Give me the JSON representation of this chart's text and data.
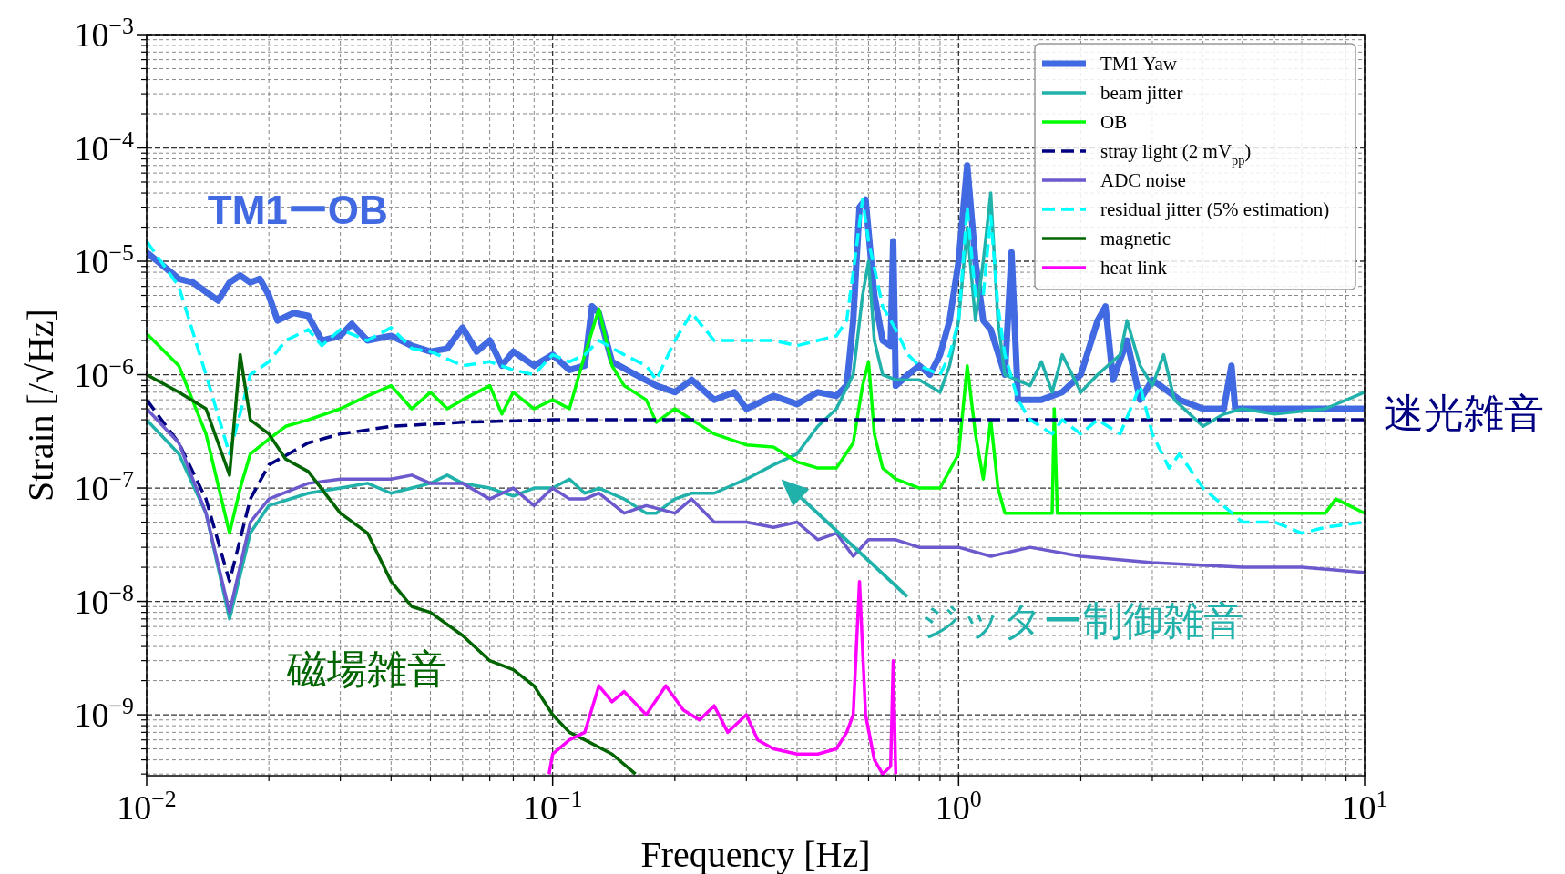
{
  "chart_data": {
    "type": "line",
    "xlabel": "Frequency [Hz]",
    "ylabel": "Strain [/√Hz]",
    "log": "xy",
    "grid": true,
    "legend": "top right",
    "xlim": [
      0.01,
      10
    ],
    "ylim": [
      2.9e-10,
      0.001
    ],
    "xticks": [
      {
        "value": 0.01,
        "label": "10$^{−2}$"
      },
      {
        "value": 0.1,
        "label": "10$^{−1}$"
      },
      {
        "value": 1,
        "label": "10$^{0}$"
      },
      {
        "value": 10,
        "label": "10$^{1}$"
      }
    ],
    "yticks": [
      {
        "value": 1e-09,
        "label": "10$^{−9}$"
      },
      {
        "value": 1e-08,
        "label": "10$^{−8}$"
      },
      {
        "value": 1e-07,
        "label": "10$^{−7}$"
      },
      {
        "value": 1e-06,
        "label": "10$^{−6}$"
      },
      {
        "value": 1e-05,
        "label": "10$^{−5}$"
      },
      {
        "value": 0.0001,
        "label": "10$^{−4}$"
      },
      {
        "value": 0.001,
        "label": "10$^{−3}$"
      }
    ],
    "annotations": [
      "TM1ーOB",
      "迷光雑音",
      "ジッター制御雑音",
      "磁場雑音"
    ],
    "series": [
      {
        "name": "TM1 Yaw",
        "color": "#4169e1",
        "x": [
          0.01,
          0.012,
          0.013,
          0.015,
          0.016,
          0.017,
          0.018,
          0.019,
          0.02,
          0.021,
          0.023,
          0.025,
          0.027,
          0.03,
          0.032,
          0.035,
          0.04,
          0.045,
          0.05,
          0.055,
          0.06,
          0.065,
          0.07,
          0.075,
          0.08,
          0.09,
          0.1,
          0.11,
          0.12,
          0.125,
          0.13,
          0.14,
          0.16,
          0.18,
          0.2,
          0.22,
          0.25,
          0.28,
          0.3,
          0.35,
          0.4,
          0.45,
          0.5,
          0.53,
          0.55,
          0.57,
          0.59,
          0.62,
          0.65,
          0.68,
          0.69,
          0.7,
          0.75,
          0.8,
          0.85,
          0.9,
          0.95,
          1.0,
          1.05,
          1.1,
          1.15,
          1.2,
          1.3,
          1.35,
          1.4,
          1.6,
          1.8,
          2.0,
          2.2,
          2.3,
          2.4,
          2.6,
          2.8,
          3.0,
          3.5,
          4,
          4.5,
          4.7,
          4.8,
          6,
          8,
          10
        ],
        "values": [
          1.2e-05,
          7e-06,
          6.5e-06,
          4.5e-06,
          6.5e-06,
          7.5e-06,
          6.5e-06,
          7e-06,
          5e-06,
          3e-06,
          3.5e-06,
          3.3e-06,
          2e-06,
          2.2e-06,
          2.8e-06,
          2e-06,
          2.2e-06,
          1.8e-06,
          1.6e-06,
          1.7e-06,
          2.6e-06,
          1.6e-06,
          2e-06,
          1.2e-06,
          1.6e-06,
          1.2e-06,
          1.5e-06,
          1.1e-06,
          1.2e-06,
          4e-06,
          3.5e-06,
          1.3e-06,
          1e-06,
          8e-07,
          7e-07,
          9e-07,
          6e-07,
          7e-07,
          5e-07,
          6.5e-07,
          5.5e-07,
          7e-07,
          6.5e-07,
          8e-07,
          3e-06,
          3e-05,
          3.5e-05,
          5e-06,
          2e-06,
          1.8e-06,
          1.5e-05,
          8e-07,
          1e-06,
          1.2e-06,
          1e-06,
          1.5e-06,
          3e-06,
          1e-05,
          7e-05,
          1e-05,
          3e-06,
          2.5e-06,
          1e-06,
          1.2e-05,
          6e-07,
          6e-07,
          7e-07,
          1e-06,
          3e-06,
          4e-06,
          9e-07,
          2e-06,
          6e-07,
          9e-07,
          6e-07,
          5e-07,
          5e-07,
          1.2e-06,
          5e-07,
          5e-07,
          5e-07,
          5e-07
        ]
      },
      {
        "name": "beam jitter",
        "color": "#20b2aa",
        "x": [
          0.01,
          0.012,
          0.014,
          0.016,
          0.018,
          0.02,
          0.025,
          0.03,
          0.035,
          0.04,
          0.045,
          0.05,
          0.055,
          0.06,
          0.07,
          0.08,
          0.09,
          0.1,
          0.11,
          0.12,
          0.13,
          0.15,
          0.17,
          0.18,
          0.2,
          0.22,
          0.25,
          0.3,
          0.35,
          0.4,
          0.45,
          0.5,
          0.55,
          0.58,
          0.6,
          0.62,
          0.65,
          0.7,
          0.8,
          0.9,
          0.95,
          1.0,
          1.05,
          1.1,
          1.15,
          1.2,
          1.25,
          1.3,
          1.5,
          1.6,
          1.7,
          1.8,
          2.0,
          2.2,
          2.5,
          2.6,
          2.8,
          3.0,
          3.2,
          3.4,
          4,
          4.5,
          5,
          6,
          8,
          10
        ],
        "values": [
          4e-07,
          2e-07,
          6e-08,
          7e-09,
          4e-08,
          7e-08,
          9e-08,
          1e-07,
          1.1e-07,
          9e-08,
          1e-07,
          1.1e-07,
          1.3e-07,
          1.1e-07,
          1e-07,
          8.5e-08,
          1e-07,
          1e-07,
          1.2e-07,
          9e-08,
          1e-07,
          8e-08,
          6e-08,
          6e-08,
          8e-08,
          9e-08,
          9e-08,
          1.2e-07,
          1.6e-07,
          2e-07,
          3.5e-07,
          5e-07,
          1e-06,
          5e-06,
          1e-05,
          2e-06,
          1e-06,
          9e-07,
          9e-07,
          7e-07,
          1.2e-06,
          3e-06,
          2e-05,
          3e-06,
          1e-05,
          4e-05,
          3e-06,
          1e-06,
          8e-07,
          1.3e-06,
          7e-07,
          1.5e-06,
          7e-07,
          1e-06,
          1.5e-06,
          3e-06,
          1.2e-06,
          8e-07,
          1.5e-06,
          6e-07,
          3.5e-07,
          4.5e-07,
          5e-07,
          4.5e-07,
          5e-07,
          7e-07
        ]
      },
      {
        "name": "OB",
        "color": "#00ff00",
        "x": [
          0.01,
          0.012,
          0.014,
          0.016,
          0.017,
          0.018,
          0.02,
          0.022,
          0.025,
          0.03,
          0.035,
          0.04,
          0.045,
          0.05,
          0.055,
          0.06,
          0.07,
          0.075,
          0.08,
          0.09,
          0.1,
          0.11,
          0.12,
          0.13,
          0.14,
          0.15,
          0.17,
          0.18,
          0.2,
          0.22,
          0.25,
          0.3,
          0.35,
          0.4,
          0.45,
          0.5,
          0.55,
          0.58,
          0.6,
          0.62,
          0.65,
          0.7,
          0.8,
          0.9,
          1.0,
          1.05,
          1.1,
          1.15,
          1.2,
          1.25,
          1.3,
          1.5,
          1.7,
          1.72,
          1.75,
          2,
          3,
          5,
          8,
          8.5,
          10
        ],
        "values": [
          2.3e-06,
          1.2e-06,
          3e-07,
          4e-08,
          1e-07,
          2e-07,
          2.7e-07,
          3.5e-07,
          4e-07,
          5e-07,
          6.5e-07,
          8e-07,
          5e-07,
          7e-07,
          5e-07,
          6e-07,
          8e-07,
          4.5e-07,
          7e-07,
          5e-07,
          6e-07,
          5e-07,
          1.5e-06,
          3.8e-06,
          1.2e-06,
          8e-07,
          6e-07,
          3.8e-07,
          5e-07,
          4e-07,
          3e-07,
          2.4e-07,
          2.3e-07,
          1.7e-07,
          1.5e-07,
          1.5e-07,
          2.5e-07,
          8e-07,
          1.3e-06,
          3e-07,
          1.5e-07,
          1.2e-07,
          1e-07,
          1e-07,
          2e-07,
          1.2e-06,
          3e-07,
          1.2e-07,
          4e-07,
          1e-07,
          6e-08,
          6e-08,
          6e-08,
          5e-07,
          6e-08,
          6e-08,
          6e-08,
          6e-08,
          6e-08,
          8e-08,
          6e-08
        ]
      },
      {
        "name": "stray light (2 mV$_{pp}$)",
        "color": "#000080",
        "line_style": "dashed",
        "x": [
          0.01,
          0.012,
          0.014,
          0.016,
          0.018,
          0.02,
          0.025,
          0.03,
          0.04,
          0.06,
          0.1,
          0.3,
          10
        ],
        "values": [
          6e-07,
          2.5e-07,
          8e-08,
          1.5e-08,
          8e-08,
          1.6e-07,
          2.5e-07,
          3e-07,
          3.5e-07,
          3.8e-07,
          4e-07,
          4e-07,
          4e-07
        ]
      },
      {
        "name": "ADC noise",
        "color": "#6a5acd",
        "x": [
          0.01,
          0.012,
          0.014,
          0.016,
          0.018,
          0.02,
          0.025,
          0.03,
          0.04,
          0.045,
          0.05,
          0.06,
          0.07,
          0.08,
          0.09,
          0.1,
          0.11,
          0.12,
          0.13,
          0.15,
          0.17,
          0.2,
          0.22,
          0.25,
          0.3,
          0.35,
          0.4,
          0.45,
          0.5,
          0.55,
          0.6,
          0.7,
          0.8,
          1,
          1.2,
          1.5,
          2,
          3,
          5,
          7,
          10
        ],
        "values": [
          5e-07,
          2.5e-07,
          6e-08,
          8e-09,
          5e-08,
          8e-08,
          1.1e-07,
          1.2e-07,
          1.2e-07,
          1.3e-07,
          1.1e-07,
          1.1e-07,
          8e-08,
          1e-07,
          7e-08,
          1e-07,
          8e-08,
          8e-08,
          9e-08,
          6e-08,
          7e-08,
          6e-08,
          8e-08,
          5e-08,
          5e-08,
          4.5e-08,
          5e-08,
          3.5e-08,
          4e-08,
          2.5e-08,
          3.5e-08,
          3.5e-08,
          3e-08,
          3e-08,
          2.5e-08,
          3e-08,
          2.5e-08,
          2.2e-08,
          2e-08,
          2e-08,
          1.8e-08
        ]
      },
      {
        "name": "residual jitter (5% estimation)",
        "color": "#00ffff",
        "line_style": "dashed",
        "x": [
          0.01,
          0.012,
          0.014,
          0.016,
          0.018,
          0.02,
          0.022,
          0.025,
          0.027,
          0.03,
          0.035,
          0.04,
          0.045,
          0.05,
          0.06,
          0.07,
          0.08,
          0.09,
          0.1,
          0.11,
          0.12,
          0.13,
          0.15,
          0.17,
          0.18,
          0.2,
          0.22,
          0.25,
          0.3,
          0.35,
          0.4,
          0.45,
          0.5,
          0.53,
          0.55,
          0.58,
          0.6,
          0.65,
          0.7,
          0.75,
          0.8,
          0.9,
          0.95,
          1.0,
          1.05,
          1.1,
          1.15,
          1.2,
          1.25,
          1.3,
          1.4,
          1.5,
          1.7,
          1.8,
          2,
          2.2,
          2.5,
          2.8,
          3,
          3.3,
          3.5,
          3.7,
          4,
          5,
          6,
          7,
          8,
          10
        ],
        "values": [
          1.5e-05,
          6e-06,
          1e-06,
          2e-07,
          1e-06,
          1.3e-06,
          2e-06,
          2.5e-06,
          1.8e-06,
          2.5e-06,
          2e-06,
          2.6e-06,
          1.7e-06,
          1.6e-06,
          1.2e-06,
          1.3e-06,
          1.1e-06,
          1e-06,
          1.5e-06,
          1.3e-06,
          1.5e-06,
          2e-06,
          1.5e-06,
          1.2e-06,
          9e-07,
          2e-06,
          3.5e-06,
          2e-06,
          2e-06,
          2e-06,
          1.8e-06,
          2e-06,
          2.2e-06,
          3e-06,
          8e-06,
          3.5e-05,
          1.5e-05,
          4e-06,
          2.5e-06,
          1.5e-06,
          1.2e-06,
          1e-06,
          1.5e-06,
          3e-06,
          3e-05,
          5e-06,
          5e-06,
          2.5e-05,
          4e-06,
          1.5e-06,
          6e-07,
          4e-07,
          3e-07,
          4e-07,
          3e-07,
          4e-07,
          3e-07,
          8e-07,
          3e-07,
          1.5e-07,
          2e-07,
          1.5e-07,
          1e-07,
          5e-08,
          5e-08,
          4e-08,
          4.5e-08,
          5e-08
        ]
      },
      {
        "name": "magnetic",
        "color": "#006400",
        "x": [
          0.01,
          0.012,
          0.014,
          0.016,
          0.017,
          0.018,
          0.02,
          0.022,
          0.025,
          0.03,
          0.035,
          0.04,
          0.045,
          0.05,
          0.06,
          0.07,
          0.08,
          0.09,
          0.1,
          0.11,
          0.12,
          0.14,
          0.16
        ],
        "values": [
          1e-06,
          7e-07,
          5e-07,
          1.3e-07,
          1.5e-06,
          4e-07,
          3e-07,
          1.8e-07,
          1.4e-07,
          6e-08,
          4e-08,
          1.5e-08,
          9e-09,
          8e-09,
          5e-09,
          3e-09,
          2.5e-09,
          1.8e-09,
          1e-09,
          7e-10,
          6e-10,
          4.5e-10,
          3e-10
        ]
      },
      {
        "name": "heat link",
        "color": "#ff00ff",
        "x": [
          0.098,
          0.1,
          0.11,
          0.12,
          0.13,
          0.14,
          0.15,
          0.17,
          0.19,
          0.21,
          0.23,
          0.25,
          0.27,
          0.3,
          0.32,
          0.35,
          0.4,
          0.45,
          0.5,
          0.53,
          0.55,
          0.57,
          0.59,
          0.62,
          0.65,
          0.68,
          0.69,
          0.7
        ],
        "values": [
          3e-10,
          4.5e-10,
          6e-10,
          7e-10,
          1.8e-09,
          1.3e-09,
          1.6e-09,
          1e-09,
          1.8e-09,
          1.1e-09,
          9e-10,
          1.2e-09,
          7e-10,
          1e-09,
          6e-10,
          5e-10,
          4.5e-10,
          4.5e-10,
          5e-10,
          7e-10,
          1e-09,
          1.5e-08,
          1e-09,
          4e-10,
          3e-10,
          3.5e-10,
          3e-09,
          3e-10
        ]
      }
    ]
  }
}
